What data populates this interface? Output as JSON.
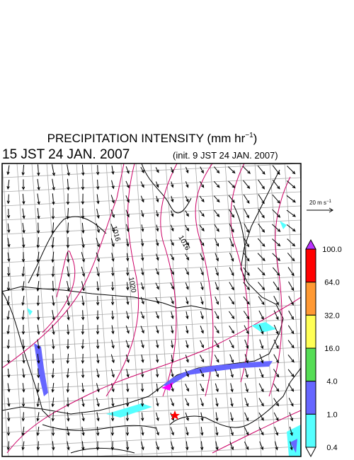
{
  "header": {
    "title_main": "PRECIPITATION INTENSITY (mm hr",
    "title_exp": "−1",
    "title_close": ")",
    "valid_time": "15 JST 24 JAN. 2007",
    "init_time": "(init. 9 JST 24 JAN. 2007)"
  },
  "wind_reference": {
    "label_main": "20 m s",
    "label_exp": "−1"
  },
  "contours": {
    "labels": [
      "1016",
      "1020",
      "1016"
    ]
  },
  "legend": {
    "labels": [
      "100.0",
      "64.0",
      "32.0",
      "16.0",
      "4.0",
      "1.0",
      "0.4"
    ],
    "colors": [
      "#ff0000",
      "#ff9933",
      "#ffff55",
      "#55dd55",
      "#6666ff",
      "#55ffff"
    ],
    "over_color": "#bb33ff",
    "under_color": "#ffffff"
  }
}
